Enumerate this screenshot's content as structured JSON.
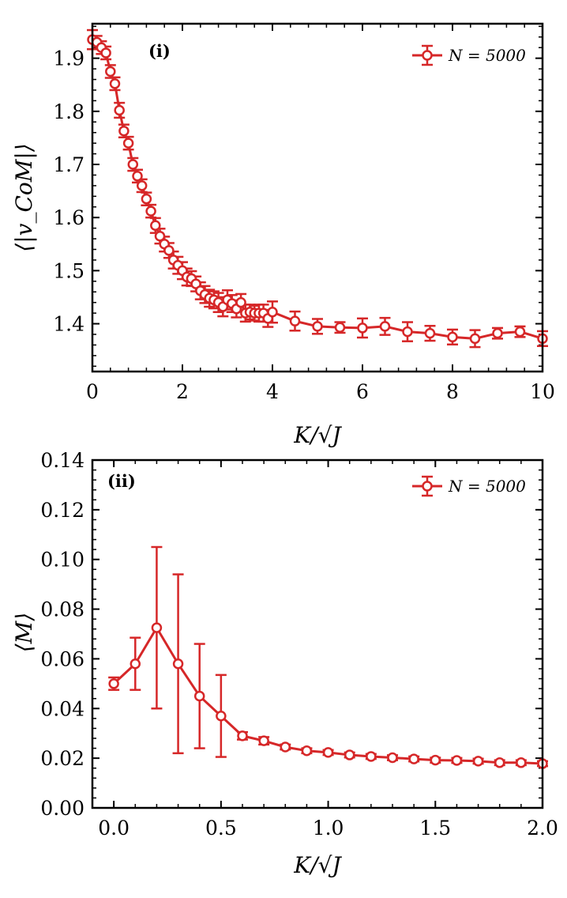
{
  "chart_data": [
    {
      "type": "line",
      "panel_label": "(i)",
      "xlabel": "K/√J",
      "ylabel": "⟨|v_CoM|⟩",
      "xlim": [
        0,
        10
      ],
      "ylim": [
        1.31,
        1.965
      ],
      "xticks": [
        0,
        2,
        4,
        6,
        8,
        10
      ],
      "xtick_labels": [
        "0",
        "2",
        "4",
        "6",
        "8",
        "10"
      ],
      "yticks": [
        1.4,
        1.5,
        1.6,
        1.7,
        1.8,
        1.9
      ],
      "ytick_labels": [
        "1.4",
        "1.5",
        "1.6",
        "1.7",
        "1.8",
        "1.9"
      ],
      "color": "#d62728",
      "legend": {
        "label": "N = 5000",
        "position": "top-right"
      },
      "series": [
        {
          "name": "N = 5000",
          "x": [
            0,
            0.1,
            0.2,
            0.3,
            0.4,
            0.5,
            0.6,
            0.7,
            0.8,
            0.9,
            1.0,
            1.1,
            1.2,
            1.3,
            1.4,
            1.5,
            1.6,
            1.7,
            1.8,
            1.9,
            2.0,
            2.1,
            2.2,
            2.3,
            2.4,
            2.5,
            2.6,
            2.7,
            2.8,
            2.9,
            3.0,
            3.1,
            3.2,
            3.3,
            3.4,
            3.5,
            3.6,
            3.7,
            3.8,
            3.9,
            4.0,
            4.5,
            5.0,
            5.5,
            6.0,
            6.5,
            7.0,
            7.5,
            8.0,
            8.5,
            9.0,
            9.5,
            10.0
          ],
          "y": [
            1.935,
            1.93,
            1.92,
            1.91,
            1.875,
            1.852,
            1.802,
            1.763,
            1.74,
            1.7,
            1.678,
            1.66,
            1.635,
            1.612,
            1.585,
            1.565,
            1.55,
            1.538,
            1.52,
            1.51,
            1.5,
            1.488,
            1.485,
            1.475,
            1.462,
            1.455,
            1.448,
            1.445,
            1.44,
            1.432,
            1.445,
            1.438,
            1.428,
            1.44,
            1.42,
            1.422,
            1.42,
            1.42,
            1.42,
            1.41,
            1.422,
            1.405,
            1.395,
            1.393,
            1.392,
            1.395,
            1.385,
            1.382,
            1.375,
            1.372,
            1.382,
            1.385,
            1.372
          ],
          "err": [
            0.018,
            0.012,
            0.012,
            0.012,
            0.012,
            0.012,
            0.014,
            0.012,
            0.012,
            0.012,
            0.012,
            0.012,
            0.012,
            0.012,
            0.014,
            0.014,
            0.014,
            0.014,
            0.016,
            0.016,
            0.016,
            0.016,
            0.014,
            0.014,
            0.016,
            0.016,
            0.016,
            0.016,
            0.018,
            0.018,
            0.018,
            0.016,
            0.016,
            0.016,
            0.016,
            0.014,
            0.014,
            0.016,
            0.016,
            0.016,
            0.02,
            0.018,
            0.014,
            0.01,
            0.018,
            0.016,
            0.018,
            0.014,
            0.014,
            0.016,
            0.01,
            0.01,
            0.014
          ]
        }
      ]
    },
    {
      "type": "line",
      "panel_label": "(ii)",
      "xlabel": "K/√J",
      "ylabel": "⟨M⟩",
      "xlim": [
        -0.1,
        2.0
      ],
      "ylim": [
        0.0,
        0.14
      ],
      "xticks": [
        0.0,
        0.5,
        1.0,
        1.5,
        2.0
      ],
      "xtick_labels": [
        "0.0",
        "0.5",
        "1.0",
        "1.5",
        "2.0"
      ],
      "yticks": [
        0.0,
        0.02,
        0.04,
        0.06,
        0.08,
        0.1,
        0.12,
        0.14
      ],
      "ytick_labels": [
        "0.00",
        "0.02",
        "0.04",
        "0.06",
        "0.08",
        "0.10",
        "0.12",
        "0.14"
      ],
      "color": "#d62728",
      "legend": {
        "label": "N = 5000",
        "position": "top-right"
      },
      "series": [
        {
          "name": "N = 5000",
          "x": [
            0.0,
            0.1,
            0.2,
            0.3,
            0.4,
            0.5,
            0.6,
            0.7,
            0.8,
            0.9,
            1.0,
            1.1,
            1.2,
            1.3,
            1.4,
            1.5,
            1.6,
            1.7,
            1.8,
            1.9,
            2.0
          ],
          "y": [
            0.05,
            0.058,
            0.0725,
            0.058,
            0.045,
            0.037,
            0.029,
            0.027,
            0.0245,
            0.023,
            0.0223,
            0.0213,
            0.0207,
            0.0202,
            0.0197,
            0.0192,
            0.0191,
            0.0188,
            0.0182,
            0.0182,
            0.0178
          ],
          "err": [
            0.0025,
            0.0105,
            0.0325,
            0.036,
            0.021,
            0.0165,
            0.0015,
            0.0015,
            0.001,
            0.001,
            0.001,
            0.001,
            0.001,
            0.001,
            0.001,
            0.001,
            0.001,
            0.001,
            0.001,
            0.001,
            0.001
          ]
        }
      ]
    }
  ]
}
